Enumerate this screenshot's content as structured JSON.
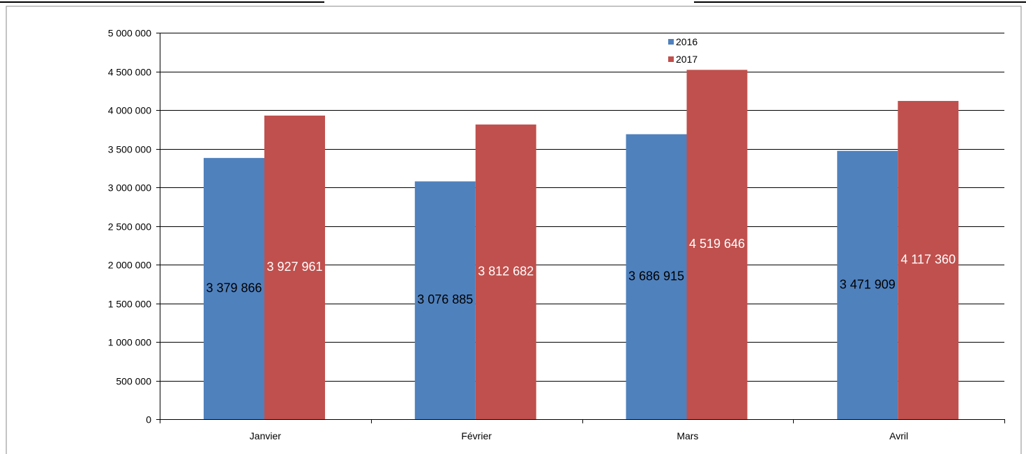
{
  "chart_data": {
    "type": "bar",
    "title": "",
    "xlabel": "",
    "ylabel": "",
    "categories": [
      "Janvier",
      "Février",
      "Mars",
      "Avril"
    ],
    "series": [
      {
        "name": "2016",
        "color": "#4f81bd",
        "values": [
          3379866,
          3076885,
          3686915,
          3471909
        ],
        "labels": [
          "3 379 866",
          "3 076 885",
          "3 686 915",
          "3 471 909"
        ],
        "label_color": "#000000"
      },
      {
        "name": "2017",
        "color": "#c0504d",
        "values": [
          3927961,
          3812682,
          4519646,
          4117360
        ],
        "labels": [
          "3 927 961",
          "3 812 682",
          "4 519 646",
          "4 117 360"
        ],
        "label_color": "#ffffff"
      }
    ],
    "ylim": [
      0,
      5000000
    ],
    "yticks": [
      0,
      500000,
      1000000,
      1500000,
      2000000,
      2500000,
      3000000,
      3500000,
      4000000,
      4500000,
      5000000
    ],
    "ytick_labels": [
      "0",
      "500 000",
      "1 000 000",
      "1 500 000",
      "2 000 000",
      "2 500 000",
      "3 000 000",
      "3 500 000",
      "4 000 000",
      "4 500 000",
      "5 000 000"
    ],
    "grid": true,
    "legend": "top-center",
    "data_labels": true
  }
}
